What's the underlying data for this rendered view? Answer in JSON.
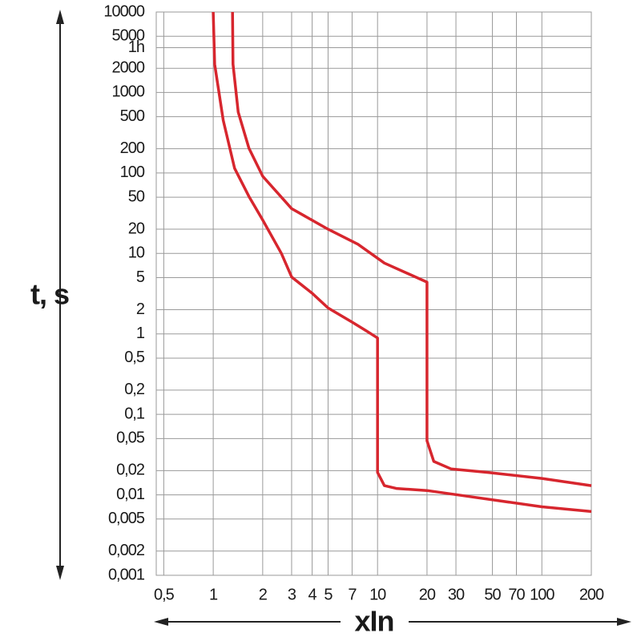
{
  "chart_data": {
    "type": "line",
    "ylabel": "t, s",
    "xlabel": "xIn",
    "xscale": "log",
    "yscale": "log",
    "grid": true,
    "xlim": [
      0.45,
      200
    ],
    "ylim": [
      0.001,
      10000
    ],
    "xticks": [
      {
        "value": 0.5,
        "label": "0,5"
      },
      1,
      2,
      3,
      4,
      5,
      7,
      10,
      20,
      30,
      50,
      70,
      100,
      200
    ],
    "yticks": [
      10000,
      5000,
      {
        "value": 3600,
        "label": "1h"
      },
      2000,
      1000,
      500,
      200,
      100,
      50,
      20,
      10,
      5,
      2,
      1,
      {
        "value": 0.5,
        "label": "0,5"
      },
      {
        "value": 0.2,
        "label": "0,2"
      },
      {
        "value": 0.1,
        "label": "0,1"
      },
      {
        "value": 0.05,
        "label": "0,05"
      },
      {
        "value": 0.02,
        "label": "0,02"
      },
      {
        "value": 0.01,
        "label": "0,01"
      },
      {
        "value": 0.005,
        "label": "0,005"
      },
      {
        "value": 0.002,
        "label": "0,002"
      },
      {
        "value": 0.001,
        "label": "0,001"
      }
    ],
    "series": [
      {
        "color": "#d7262e",
        "x": [
          1.0,
          1.02,
          1.15,
          1.35,
          1.65,
          2,
          2.6,
          3,
          4,
          5,
          7,
          8.5,
          10,
          10,
          11,
          13,
          20,
          38,
          100,
          200
        ],
        "values": [
          10000,
          2250,
          452,
          114,
          51,
          26,
          10,
          5.1,
          3.2,
          2.1,
          1.4,
          1.1,
          0.89,
          0.019,
          0.013,
          0.012,
          0.0113,
          0.0094,
          0.0071,
          0.0062
        ]
      },
      {
        "color": "#d7262e",
        "x": [
          1.31,
          1.32,
          1.42,
          1.65,
          2,
          3,
          5,
          7.6,
          11,
          20,
          20,
          22,
          28,
          47,
          100,
          200
        ],
        "values": [
          10000,
          2250,
          570,
          203,
          91,
          36,
          20,
          13,
          7.6,
          4.4,
          0.047,
          0.026,
          0.021,
          0.019,
          0.016,
          0.013
        ]
      }
    ]
  }
}
